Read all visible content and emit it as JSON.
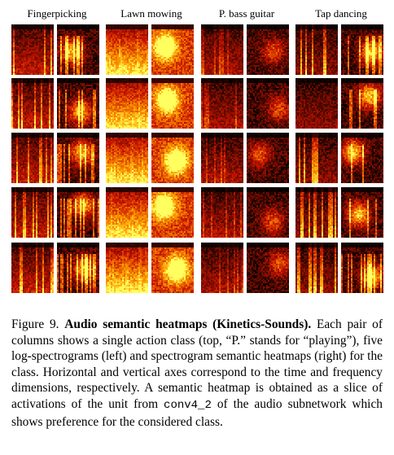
{
  "figure": {
    "classes": [
      {
        "name": "Fingerpicking",
        "palette": "fire"
      },
      {
        "name": "Lawn mowing",
        "palette": "fire"
      },
      {
        "name": "P. bass guitar",
        "palette": "fire"
      },
      {
        "name": "Tap dancing",
        "palette": "fire"
      }
    ],
    "rows_per_class": 5,
    "columns_per_class": [
      "log-spectrogram",
      "semantic-heatmap"
    ]
  },
  "caption": {
    "label": "Figure 9.",
    "title": "Audio semantic heatmaps (Kinetics-Sounds).",
    "text_1": "Each pair of columns shows a single action class (top, “P.” stands for “playing”), five log-spectrograms (left) and spectrogram semantic heatmaps (right) for the class. Horizontal and vertical axes correspond to the time and frequency dimensions, respectively. A semantic heatmap is obtained as a slice of activations of the unit from",
    "code": "conv4_2",
    "text_2": "of the audio subnetwork which shows preference for the considered class."
  },
  "colors": {
    "background": "#ffffff",
    "heat_low": "#000000",
    "heat_mid": "#c81400",
    "heat_high": "#ffff60"
  }
}
